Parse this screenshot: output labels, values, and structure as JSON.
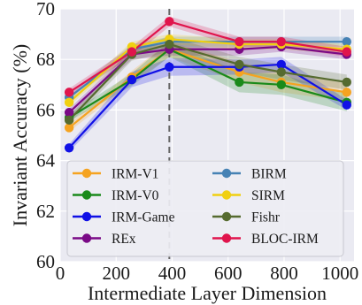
{
  "chart_data": {
    "type": "line",
    "xlabel": "Intermediate Layer Dimension",
    "ylabel": "Invariant Accuracy (%)",
    "xlim": [
      0,
      1050
    ],
    "ylim": [
      60,
      70
    ],
    "xticks": [
      0,
      200,
      400,
      600,
      800,
      1000
    ],
    "yticks": [
      60,
      62,
      64,
      66,
      68,
      70
    ],
    "grid": true,
    "legend_position": "lower-center",
    "reference_line": {
      "x": 390,
      "style": "dashed"
    },
    "x": [
      32,
      256,
      390,
      640,
      790,
      1024
    ],
    "series": [
      {
        "name": "IRM-V1",
        "color": "#f5a320",
        "values": [
          65.3,
          67.3,
          68.4,
          67.5,
          67.1,
          66.7
        ],
        "band": [
          0.15,
          0.25,
          0.3,
          0.4,
          0.4,
          0.35
        ]
      },
      {
        "name": "IRM-V0",
        "color": "#1a8a1a",
        "values": [
          65.7,
          67.2,
          68.4,
          67.1,
          67.0,
          66.3
        ],
        "band": [
          0.15,
          0.25,
          0.3,
          0.4,
          0.4,
          0.35
        ]
      },
      {
        "name": "IRM-Game",
        "color": "#1010e6",
        "values": [
          64.5,
          67.2,
          67.7,
          67.7,
          67.8,
          66.2
        ],
        "band": [
          0.15,
          0.3,
          0.35,
          0.3,
          0.3,
          0.2
        ]
      },
      {
        "name": "REx",
        "color": "#7a0a86",
        "values": [
          65.9,
          68.2,
          68.4,
          68.4,
          68.5,
          68.2
        ],
        "band": [
          0.15,
          0.2,
          0.25,
          0.25,
          0.2,
          0.2
        ]
      },
      {
        "name": "BIRM",
        "color": "#4682b4",
        "values": [
          66.5,
          68.4,
          68.7,
          68.7,
          68.7,
          68.7
        ],
        "band": [
          0.15,
          0.2,
          0.2,
          0.2,
          0.2,
          0.2
        ]
      },
      {
        "name": "SIRM",
        "color": "#f0d010",
        "values": [
          66.3,
          68.5,
          68.8,
          68.6,
          68.6,
          68.4
        ],
        "band": [
          0.15,
          0.2,
          0.2,
          0.2,
          0.2,
          0.2
        ]
      },
      {
        "name": "Fishr",
        "color": "#566b2f",
        "values": [
          65.6,
          68.2,
          68.6,
          67.8,
          67.5,
          67.1
        ],
        "band": [
          0.15,
          0.25,
          0.3,
          0.3,
          0.3,
          0.3
        ]
      },
      {
        "name": "BLOC-IRM",
        "color": "#e0144c",
        "values": [
          66.7,
          68.3,
          69.5,
          68.7,
          68.7,
          68.3
        ],
        "band": [
          0.15,
          0.2,
          0.2,
          0.2,
          0.2,
          0.2
        ]
      }
    ]
  }
}
